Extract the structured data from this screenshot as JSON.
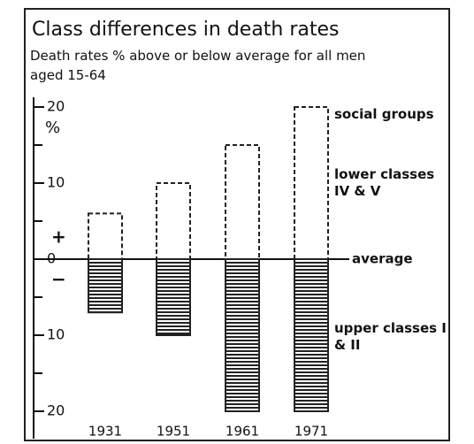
{
  "chart_data": {
    "type": "bar",
    "title": "Class differences in death rates",
    "subtitle": "Death rates % above or below average for all men aged 15-64",
    "y_unit": "%",
    "sign_labels": [
      "+",
      "−"
    ],
    "baseline_label": "average",
    "legend_title": "social groups",
    "categories": [
      "1931",
      "1951",
      "1961",
      "1971"
    ],
    "series": [
      {
        "name": "lower classes IV & V",
        "color": "#ffffff",
        "values": [
          6,
          10,
          15,
          20
        ]
      },
      {
        "name": "upper classes I & II",
        "color": "#222222",
        "values": [
          -7,
          -10,
          -20,
          -20
        ]
      }
    ],
    "ylim": [
      -21,
      21
    ],
    "yticks": [
      20,
      10,
      0,
      {
        "value": -10,
        "label": "10"
      },
      {
        "value": -20,
        "label": "20"
      }
    ],
    "minor_yticks": [
      15,
      5,
      -5,
      -15
    ]
  }
}
